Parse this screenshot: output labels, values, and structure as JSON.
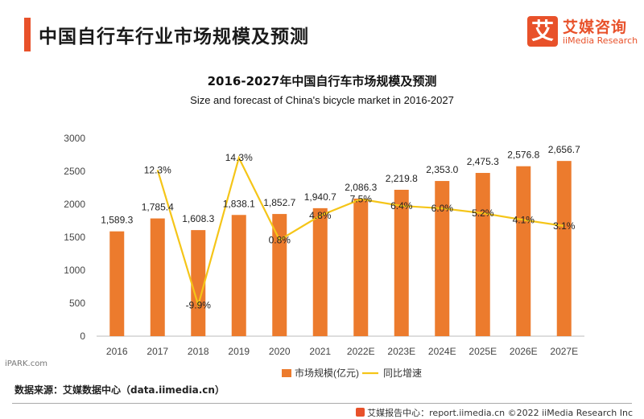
{
  "header": {
    "title": "中国自行车行业市场规模及预测",
    "brand_cn": "艾媒咨询",
    "brand_en": "iiMedia Research"
  },
  "watermark": "iPARK.com",
  "source": "数据来源：艾媒数据中心（data.iimedia.cn）",
  "footer": {
    "text": "艾媒报告中心：report.iimedia.cn   ©2022  iiMedia Research  Inc"
  },
  "colors": {
    "accent": "#e8512a",
    "bar": "#ec7b2d",
    "line": "#f5c518"
  },
  "chart_data": {
    "type": "bar",
    "title": "2016-2027年中国自行车市场规模及预测",
    "subtitle": "Size and forecast of China's bicycle market in 2016-2027",
    "categories": [
      "2016",
      "2017",
      "2018",
      "2019",
      "2020",
      "2021",
      "2022E",
      "2023E",
      "2024E",
      "2025E",
      "2026E",
      "2027E"
    ],
    "ylim": [
      0,
      3000
    ],
    "yticks": [
      0,
      500,
      1000,
      1500,
      2000,
      2500,
      3000
    ],
    "grid": false,
    "legend": "bottom",
    "series": [
      {
        "name": "市场规模(亿元)",
        "type": "bar",
        "values": [
          1589.3,
          1785.4,
          1608.3,
          1838.1,
          1852.7,
          1940.7,
          2086.3,
          2219.8,
          2353.0,
          2475.3,
          2576.8,
          2656.7
        ],
        "labels": [
          "1,589.3",
          "1,785.4",
          "1,608.3",
          "1,838.1",
          "1,852.7",
          "1,940.7",
          "2,086.3",
          "2,219.8",
          "2,353.0",
          "2,475.3",
          "2,576.8",
          "2,656.7"
        ]
      },
      {
        "name": "同比增速",
        "type": "line",
        "values": [
          null,
          12.3,
          -9.9,
          14.3,
          0.8,
          4.8,
          7.5,
          6.4,
          6.0,
          5.2,
          4.1,
          3.1
        ],
        "labels": [
          null,
          "12.3%",
          "-9.9%",
          "14.3%",
          "0.8%",
          "4.8%",
          "7.5%",
          "6.4%",
          "6.0%",
          "5.2%",
          "4.1%",
          "3.1%"
        ]
      }
    ]
  }
}
